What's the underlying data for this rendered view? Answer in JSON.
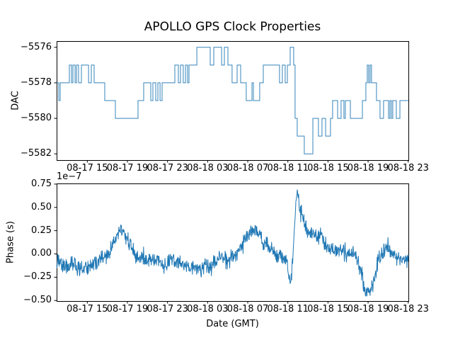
{
  "figure": {
    "background": "#ffffff",
    "line_color": "#1f77b4",
    "axis_color": "#000000",
    "text_color": "#000000"
  },
  "chart_data": [
    {
      "type": "line",
      "subtype": "step-post",
      "title": "APOLLO GPS Clock Properties",
      "ylabel": "DAC",
      "xlabel": "",
      "x_unit": "hours since 08-17 00:00 GMT",
      "xlim": [
        11.94,
        47.02
      ],
      "ylim": [
        -5582.35,
        -5575.65
      ],
      "grid": false,
      "legend": null,
      "yticks": [
        -5576,
        -5578,
        -5580,
        -5582
      ],
      "ytick_labels": [
        "−5576",
        "−5578",
        "−5580",
        "−5582"
      ],
      "xticks": [
        15,
        19,
        23,
        27,
        31,
        35,
        39,
        43,
        47
      ],
      "xtick_labels": [
        "08-17 15",
        "08-17 19",
        "08-17 23",
        "08-18 03",
        "08-18 07",
        "08-18 11",
        "08-18 15",
        "08-18 19",
        "08-18 23"
      ],
      "series": [
        {
          "name": "DAC",
          "step_points": [
            [
              11.94,
              -5578
            ],
            [
              12.15,
              -5579
            ],
            [
              12.29,
              -5578
            ],
            [
              13.21,
              -5577
            ],
            [
              13.42,
              -5578
            ],
            [
              13.56,
              -5577
            ],
            [
              13.78,
              -5578
            ],
            [
              13.92,
              -5577
            ],
            [
              14.13,
              -5578
            ],
            [
              14.41,
              -5577
            ],
            [
              15.12,
              -5578
            ],
            [
              15.4,
              -5577
            ],
            [
              15.68,
              -5578
            ],
            [
              16.74,
              -5579
            ],
            [
              17.8,
              -5580
            ],
            [
              20.06,
              -5579
            ],
            [
              20.62,
              -5578
            ],
            [
              21.33,
              -5579
            ],
            [
              21.54,
              -5578
            ],
            [
              21.82,
              -5579
            ],
            [
              22.03,
              -5578
            ],
            [
              22.25,
              -5579
            ],
            [
              22.46,
              -5578
            ],
            [
              23.73,
              -5577
            ],
            [
              24.08,
              -5578
            ],
            [
              24.29,
              -5577
            ],
            [
              24.57,
              -5578
            ],
            [
              24.79,
              -5577
            ],
            [
              25.0,
              -5578
            ],
            [
              25.14,
              -5577
            ],
            [
              25.92,
              -5576
            ],
            [
              27.26,
              -5577
            ],
            [
              27.61,
              -5576
            ],
            [
              28.39,
              -5577
            ],
            [
              28.67,
              -5576
            ],
            [
              29.02,
              -5577
            ],
            [
              29.44,
              -5578
            ],
            [
              29.94,
              -5577
            ],
            [
              30.29,
              -5578
            ],
            [
              30.85,
              -5579
            ],
            [
              31.42,
              -5578
            ],
            [
              31.56,
              -5579
            ],
            [
              32.19,
              -5578
            ],
            [
              32.55,
              -5577
            ],
            [
              34.17,
              -5578
            ],
            [
              34.45,
              -5577
            ],
            [
              34.73,
              -5578
            ],
            [
              34.95,
              -5577
            ],
            [
              35.23,
              -5576
            ],
            [
              35.58,
              -5577
            ],
            [
              35.72,
              -5580
            ],
            [
              35.93,
              -5581
            ],
            [
              36.64,
              -5582
            ],
            [
              37.49,
              -5580
            ],
            [
              38.05,
              -5581
            ],
            [
              38.4,
              -5580
            ],
            [
              38.76,
              -5581
            ],
            [
              39.25,
              -5580
            ],
            [
              39.46,
              -5579
            ],
            [
              39.96,
              -5580
            ],
            [
              40.31,
              -5579
            ],
            [
              40.59,
              -5580
            ],
            [
              40.73,
              -5579
            ],
            [
              41.23,
              -5580
            ],
            [
              42.43,
              -5579
            ],
            [
              42.78,
              -5578
            ],
            [
              42.92,
              -5577
            ],
            [
              43.06,
              -5578
            ],
            [
              43.2,
              -5577
            ],
            [
              43.34,
              -5578
            ],
            [
              43.84,
              -5579
            ],
            [
              44.19,
              -5580
            ],
            [
              44.54,
              -5579
            ],
            [
              45.04,
              -5580
            ],
            [
              45.18,
              -5579
            ],
            [
              45.32,
              -5580
            ],
            [
              45.46,
              -5579
            ],
            [
              45.81,
              -5580
            ],
            [
              46.17,
              -5579
            ],
            [
              47.02,
              -5579
            ]
          ]
        }
      ]
    },
    {
      "type": "line",
      "subtype": "noisy",
      "title": "",
      "ylabel": "Phase (s)",
      "xlabel": "Date (GMT)",
      "offset_text": "1e−7",
      "x_unit": "hours since 08-17 00:00 GMT",
      "y_unit": "1e-7 s",
      "xlim": [
        11.94,
        47.02
      ],
      "ylim": [
        -0.506,
        0.757
      ],
      "grid": false,
      "legend": null,
      "yticks": [
        0.75,
        0.5,
        0.25,
        0.0,
        -0.25,
        -0.5
      ],
      "ytick_labels": [
        "0.75",
        "0.50",
        "0.25",
        "0.00",
        "−0.25",
        "−0.50"
      ],
      "xticks": [
        15,
        19,
        23,
        27,
        31,
        35,
        39,
        43,
        47
      ],
      "xtick_labels": [
        "08-17 15",
        "08-17 19",
        "08-17 23",
        "08-18 03",
        "08-18 07",
        "08-18 11",
        "08-18 15",
        "08-18 19",
        "08-18 23"
      ],
      "series": [
        {
          "name": "Phase",
          "noise_amplitude": 0.045,
          "clip": [
            -0.48,
            0.715
          ],
          "trend_points": [
            [
              11.94,
              -0.07
            ],
            [
              12.3,
              -0.1
            ],
            [
              12.7,
              -0.12
            ],
            [
              13.1,
              -0.15
            ],
            [
              13.4,
              -0.11
            ],
            [
              13.8,
              -0.13
            ],
            [
              14.2,
              -0.16
            ],
            [
              14.6,
              -0.18
            ],
            [
              15.0,
              -0.14
            ],
            [
              15.4,
              -0.12
            ],
            [
              15.8,
              -0.1
            ],
            [
              16.2,
              -0.07
            ],
            [
              16.6,
              -0.04
            ],
            [
              17.0,
              -0.01
            ],
            [
              17.4,
              0.05
            ],
            [
              17.7,
              0.13
            ],
            [
              18.0,
              0.2
            ],
            [
              18.2,
              0.26
            ],
            [
              18.5,
              0.23
            ],
            [
              18.8,
              0.19
            ],
            [
              19.1,
              0.14
            ],
            [
              19.4,
              0.07
            ],
            [
              19.7,
              -0.01
            ],
            [
              20.0,
              -0.05
            ],
            [
              20.4,
              -0.03
            ],
            [
              20.8,
              -0.07
            ],
            [
              21.2,
              -0.04
            ],
            [
              21.6,
              -0.08
            ],
            [
              22.0,
              -0.05
            ],
            [
              22.3,
              -0.1
            ],
            [
              22.7,
              -0.13
            ],
            [
              23.1,
              -0.09
            ],
            [
              23.5,
              -0.06
            ],
            [
              23.9,
              -0.09
            ],
            [
              24.3,
              -0.11
            ],
            [
              24.7,
              -0.13
            ],
            [
              25.1,
              -0.16
            ],
            [
              25.5,
              -0.12
            ],
            [
              25.9,
              -0.14
            ],
            [
              26.3,
              -0.18
            ],
            [
              26.6,
              -0.12
            ],
            [
              27.0,
              -0.14
            ],
            [
              27.3,
              -0.17
            ],
            [
              27.6,
              -0.1
            ],
            [
              28.0,
              -0.06
            ],
            [
              28.2,
              0.0
            ],
            [
              28.6,
              -0.06
            ],
            [
              29.0,
              -0.09
            ],
            [
              29.4,
              -0.03
            ],
            [
              29.8,
              0.02
            ],
            [
              30.2,
              0.06
            ],
            [
              30.5,
              0.1
            ],
            [
              30.8,
              0.15
            ],
            [
              31.1,
              0.19
            ],
            [
              31.4,
              0.24
            ],
            [
              31.7,
              0.28
            ],
            [
              32.0,
              0.24
            ],
            [
              32.3,
              0.18
            ],
            [
              32.6,
              0.14
            ],
            [
              32.9,
              0.1
            ],
            [
              33.2,
              0.06
            ],
            [
              33.5,
              0.02
            ],
            [
              33.8,
              -0.01
            ],
            [
              34.1,
              -0.03
            ],
            [
              34.4,
              -0.02
            ],
            [
              34.7,
              -0.05
            ],
            [
              34.95,
              -0.1
            ],
            [
              35.1,
              -0.25
            ],
            [
              35.22,
              -0.37
            ],
            [
              35.35,
              -0.25
            ],
            [
              35.5,
              0.0
            ],
            [
              35.7,
              0.35
            ],
            [
              35.93,
              0.68
            ],
            [
              36.1,
              0.55
            ],
            [
              36.3,
              0.45
            ],
            [
              36.64,
              0.34
            ],
            [
              37.0,
              0.27
            ],
            [
              37.35,
              0.22
            ],
            [
              37.7,
              0.17
            ],
            [
              38.0,
              0.19
            ],
            [
              38.3,
              0.21
            ],
            [
              38.6,
              0.12
            ],
            [
              38.9,
              0.07
            ],
            [
              39.2,
              0.04
            ],
            [
              39.6,
              0.06
            ],
            [
              40.0,
              0.02
            ],
            [
              40.4,
              0.04
            ],
            [
              40.8,
              0.0
            ],
            [
              41.2,
              0.02
            ],
            [
              41.6,
              -0.02
            ],
            [
              41.94,
              -0.06
            ],
            [
              42.2,
              -0.12
            ],
            [
              42.5,
              -0.28
            ],
            [
              42.78,
              -0.44
            ],
            [
              43.0,
              -0.38
            ],
            [
              43.2,
              -0.42
            ],
            [
              43.48,
              -0.3
            ],
            [
              43.7,
              -0.22
            ],
            [
              43.9,
              -0.12
            ],
            [
              44.2,
              -0.03
            ],
            [
              44.5,
              0.04
            ],
            [
              44.9,
              0.08
            ],
            [
              45.25,
              0.04
            ],
            [
              45.6,
              0.0
            ],
            [
              45.95,
              -0.04
            ],
            [
              46.3,
              -0.06
            ],
            [
              46.65,
              -0.04
            ],
            [
              47.02,
              -0.05
            ]
          ]
        }
      ]
    }
  ]
}
